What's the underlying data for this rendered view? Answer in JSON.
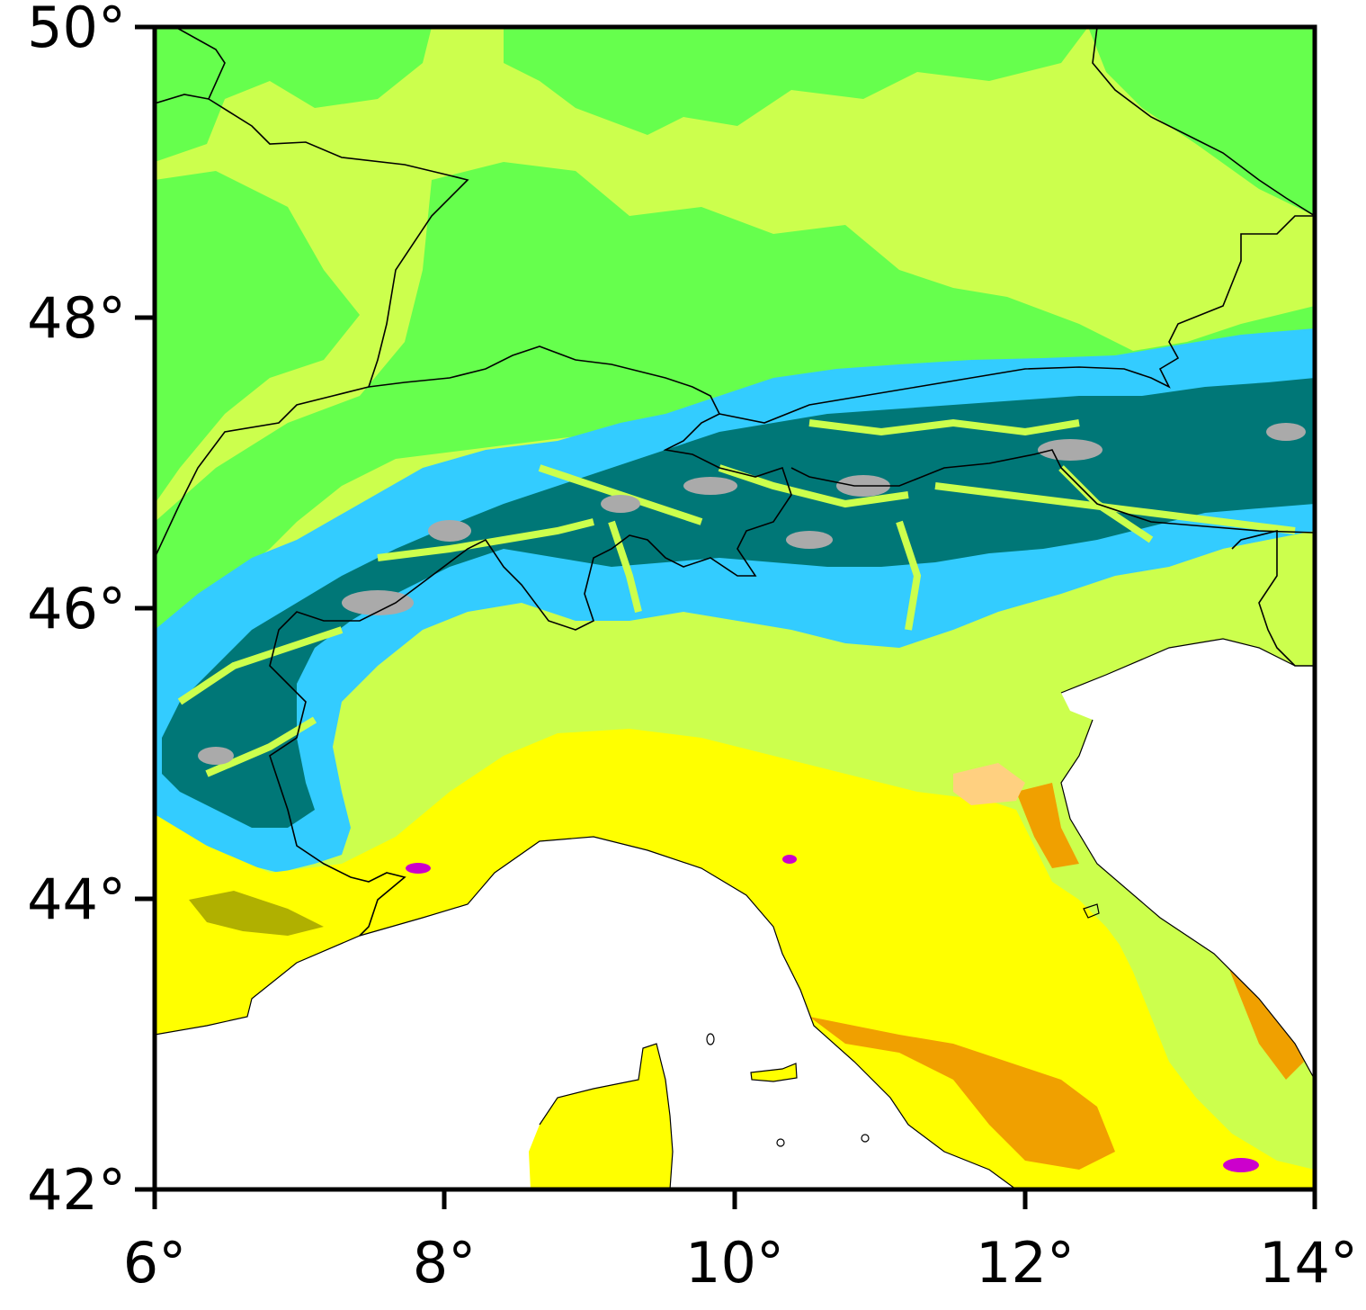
{
  "map": {
    "colors": {
      "sea": "#ffffff",
      "lowland_yellow": "#ffff00",
      "plain_yellowgreen": "#ccff4d",
      "hills_green": "#66ff4d",
      "mountain_cyan": "#33ccff",
      "high_teal": "#007777",
      "peak_gray": "#aaaaaa",
      "dry_orange": "#f0a000",
      "light_orange": "#ffd080",
      "olive": "#b0b000",
      "magenta": "#cc00cc",
      "border": "#000000"
    },
    "lon_ticks": [
      "6°",
      "8°",
      "10°",
      "12°",
      "14°"
    ],
    "lat_ticks": [
      "50°",
      "48°",
      "46°",
      "44°",
      "42°"
    ]
  }
}
